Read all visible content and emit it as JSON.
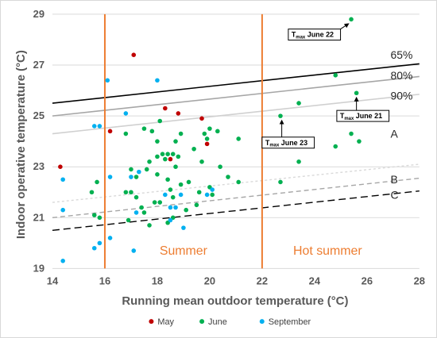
{
  "chart_data": {
    "type": "scatter",
    "xlabel": "Running mean outdoor temperature (°C)",
    "ylabel": "Indoor operative temperature (°C)",
    "xlim": [
      14,
      28
    ],
    "ylim": [
      19,
      29
    ],
    "xticks": [
      14,
      16,
      18,
      20,
      22,
      24,
      26,
      28
    ],
    "yticks": [
      19,
      21,
      23,
      25,
      27,
      29
    ],
    "grid": "horizontal",
    "legend_position": "bottom",
    "colors": {
      "May": "#c00000",
      "June": "#00b050",
      "September": "#00b0f0",
      "zone_line": "#ed7d31"
    },
    "zones": {
      "boundaries": [
        16,
        22
      ],
      "labels": [
        {
          "text": "Summer",
          "x": 19,
          "y": 19.7
        },
        {
          "text": "Hot summer",
          "x": 24.5,
          "y": 19.7
        }
      ]
    },
    "limit_lines": [
      {
        "label": "65%",
        "x": [
          14,
          28
        ],
        "y": [
          25.5,
          27.05
        ],
        "color": "#000000",
        "dash": "solid",
        "label_pos": [
          26.9,
          27.4
        ]
      },
      {
        "label": "80%",
        "x": [
          14,
          28
        ],
        "y": [
          25.0,
          26.55
        ],
        "color": "#a6a6a6",
        "dash": "solid",
        "label_pos": [
          26.9,
          26.6
        ]
      },
      {
        "label": "90%",
        "x": [
          14,
          28
        ],
        "y": [
          24.3,
          25.85
        ],
        "color": "#d0d0d0",
        "dash": "solid",
        "label_pos": [
          26.9,
          25.8
        ]
      },
      {
        "label": "B",
        "x": [
          14,
          28
        ],
        "y": [
          21.6,
          23.1
        ],
        "color": "#d9d9d9",
        "dash": "3,3",
        "label_pos": [
          26.9,
          22.5
        ]
      },
      {
        "label": "",
        "x": [
          14,
          28
        ],
        "y": [
          21.0,
          22.55
        ],
        "color": "#a6a6a6",
        "dash": "6,4",
        "label_pos": null
      },
      {
        "label": "C",
        "x": [
          14,
          28
        ],
        "y": [
          20.5,
          22.05
        ],
        "color": "#000000",
        "dash": "9,5",
        "label_pos": [
          26.9,
          21.9
        ]
      }
    ],
    "extra_labels": [
      {
        "text": "A",
        "x": 26.9,
        "y": 24.3
      }
    ],
    "annotations": [
      {
        "main": "T",
        "sub": "max",
        "rest": " June 22",
        "box_x": 23.0,
        "box_y": 28.2,
        "arrow_to": [
          25.3,
          28.75
        ]
      },
      {
        "main": "T",
        "sub": "max",
        "rest": " June 23",
        "box_x": 22.0,
        "box_y": 23.95,
        "arrow_to": [
          22.75,
          24.95
        ]
      },
      {
        "main": "T",
        "sub": "max",
        "rest": " June 21",
        "box_x": 24.85,
        "box_y": 25.0,
        "arrow_to": [
          25.6,
          25.85
        ]
      }
    ],
    "series": [
      {
        "name": "May",
        "points": [
          [
            14.3,
            23.0
          ],
          [
            16.2,
            24.4
          ],
          [
            17.1,
            27.4
          ],
          [
            18.3,
            25.3
          ],
          [
            18.8,
            25.1
          ],
          [
            19.7,
            24.9
          ],
          [
            19.9,
            23.9
          ],
          [
            18.5,
            23.3
          ]
        ]
      },
      {
        "name": "June",
        "points": [
          [
            15.5,
            22.0
          ],
          [
            15.6,
            21.1
          ],
          [
            15.8,
            21.0
          ],
          [
            15.7,
            22.4
          ],
          [
            16.8,
            24.3
          ],
          [
            16.9,
            20.9
          ],
          [
            16.8,
            22.0
          ],
          [
            17.0,
            22.9
          ],
          [
            17.0,
            22.0
          ],
          [
            17.2,
            22.6
          ],
          [
            17.4,
            21.4
          ],
          [
            17.5,
            21.2
          ],
          [
            17.5,
            24.5
          ],
          [
            17.6,
            22.9
          ],
          [
            17.7,
            23.2
          ],
          [
            17.8,
            24.4
          ],
          [
            17.7,
            20.7
          ],
          [
            18.0,
            24.0
          ],
          [
            18.0,
            23.4
          ],
          [
            18.1,
            24.8
          ],
          [
            18.1,
            21.6
          ],
          [
            18.2,
            23.5
          ],
          [
            18.3,
            23.3
          ],
          [
            18.4,
            23.5
          ],
          [
            18.4,
            22.5
          ],
          [
            18.5,
            22.1
          ],
          [
            18.6,
            23.5
          ],
          [
            18.6,
            21.8
          ],
          [
            18.7,
            24.0
          ],
          [
            18.7,
            23.0
          ],
          [
            18.6,
            21.0
          ],
          [
            18.4,
            20.8
          ],
          [
            18.8,
            23.4
          ],
          [
            18.9,
            24.3
          ],
          [
            18.9,
            22.3
          ],
          [
            19.1,
            21.3
          ],
          [
            19.2,
            22.4
          ],
          [
            19.4,
            23.7
          ],
          [
            19.6,
            22.0
          ],
          [
            19.7,
            23.2
          ],
          [
            19.8,
            24.3
          ],
          [
            19.9,
            24.1
          ],
          [
            20.0,
            24.5
          ],
          [
            20.0,
            22.2
          ],
          [
            20.1,
            21.9
          ],
          [
            20.3,
            24.4
          ],
          [
            20.4,
            23.0
          ],
          [
            20.7,
            22.6
          ],
          [
            21.1,
            24.1
          ],
          [
            21.1,
            22.4
          ],
          [
            22.7,
            25.0
          ],
          [
            22.7,
            22.4
          ],
          [
            23.4,
            25.5
          ],
          [
            23.4,
            23.2
          ],
          [
            24.8,
            26.6
          ],
          [
            24.8,
            23.8
          ],
          [
            25.4,
            28.8
          ],
          [
            25.4,
            24.3
          ],
          [
            25.6,
            25.9
          ],
          [
            25.7,
            24.0
          ],
          [
            18.0,
            22.7
          ],
          [
            19.5,
            21.5
          ],
          [
            17.2,
            21.8
          ],
          [
            17.9,
            21.6
          ]
        ]
      },
      {
        "name": "September",
        "points": [
          [
            14.4,
            22.5
          ],
          [
            14.4,
            21.3
          ],
          [
            14.4,
            19.3
          ],
          [
            15.6,
            24.6
          ],
          [
            15.8,
            24.6
          ],
          [
            15.6,
            19.8
          ],
          [
            15.8,
            20.0
          ],
          [
            16.1,
            26.4
          ],
          [
            16.2,
            22.6
          ],
          [
            16.2,
            20.2
          ],
          [
            16.8,
            25.1
          ],
          [
            17.0,
            22.6
          ],
          [
            17.1,
            19.7
          ],
          [
            17.2,
            21.2
          ],
          [
            17.3,
            22.8
          ],
          [
            18.0,
            26.4
          ],
          [
            18.3,
            21.9
          ],
          [
            18.5,
            21.4
          ],
          [
            18.5,
            20.9
          ],
          [
            18.7,
            21.4
          ],
          [
            18.9,
            21.9
          ],
          [
            19.0,
            20.6
          ],
          [
            19.9,
            21.9
          ],
          [
            20.1,
            22.1
          ]
        ]
      }
    ]
  }
}
